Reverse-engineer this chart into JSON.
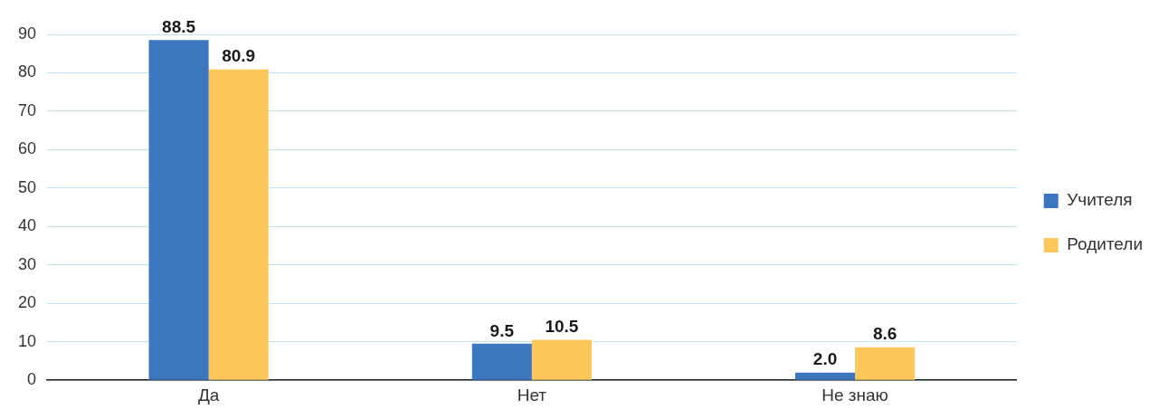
{
  "chart_data": {
    "type": "bar",
    "categories": [
      "Да",
      "Нет",
      "Не знаю"
    ],
    "series": [
      {
        "name": "Учителя",
        "color": "#3c76be",
        "values": [
          88.5,
          9.5,
          2.0
        ],
        "value_labels": [
          "88.5",
          "9.5",
          "2.0"
        ]
      },
      {
        "name": "Родители",
        "color": "#fdc75a",
        "values": [
          80.9,
          10.5,
          8.6
        ],
        "value_labels": [
          "80.9",
          "10.5",
          "8.6"
        ]
      }
    ],
    "ylim": [
      0,
      90
    ],
    "yticks": [
      0,
      10,
      20,
      30,
      40,
      50,
      60,
      70,
      80,
      90
    ],
    "grid": "y",
    "legend": "right"
  }
}
